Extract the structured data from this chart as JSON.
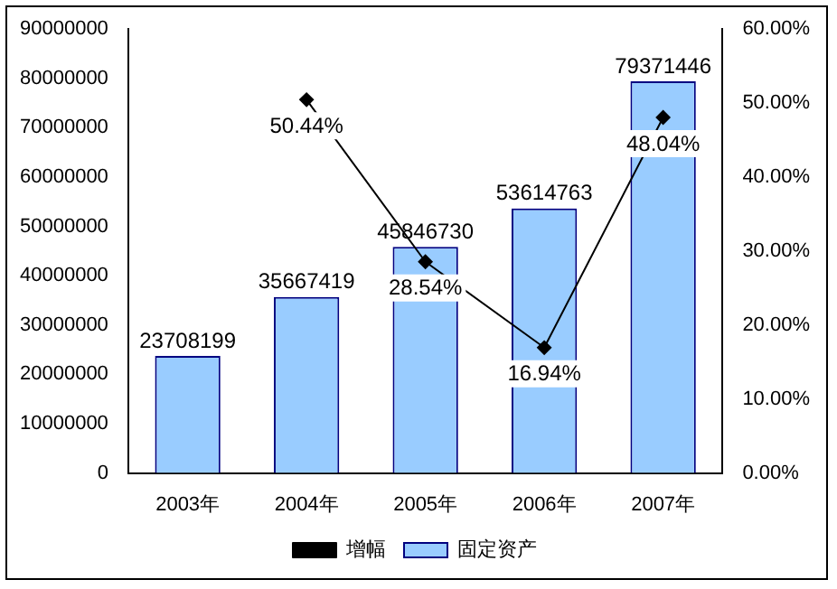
{
  "chart_data": {
    "type": "bar",
    "categories": [
      "2003年",
      "2004年",
      "2005年",
      "2006年",
      "2007年"
    ],
    "series": [
      {
        "name": "固定资产",
        "color": "#99ccff",
        "values": [
          23708199,
          35667419,
          45846730,
          53614763,
          79371446
        ],
        "value_labels": [
          "23708199",
          "35667419",
          "45846730",
          "53614763",
          "79371446"
        ]
      },
      {
        "name": "增幅",
        "type": "line",
        "axis": "y2",
        "color": "#000000",
        "marker": "diamond",
        "values": [
          null,
          50.44,
          28.54,
          16.94,
          48.04
        ],
        "value_labels": [
          null,
          "50.44%",
          "28.54%",
          "16.94%",
          "48.04%"
        ]
      }
    ],
    "ylim": [
      0,
      90000000
    ],
    "yticks": [
      0,
      10000000,
      20000000,
      30000000,
      40000000,
      50000000,
      60000000,
      70000000,
      80000000,
      90000000
    ],
    "y2lim": [
      0,
      60
    ],
    "y2ticks": [
      {
        "value": 0,
        "label": "0.00%"
      },
      {
        "value": 10,
        "label": "10.00%"
      },
      {
        "value": 20,
        "label": "20.00%"
      },
      {
        "value": 30,
        "label": "30.00%"
      },
      {
        "value": 40,
        "label": "40.00%"
      },
      {
        "value": 50,
        "label": "50.00%"
      },
      {
        "value": 60,
        "label": "60.00%"
      }
    ],
    "grid": false,
    "legend": "bottom"
  }
}
